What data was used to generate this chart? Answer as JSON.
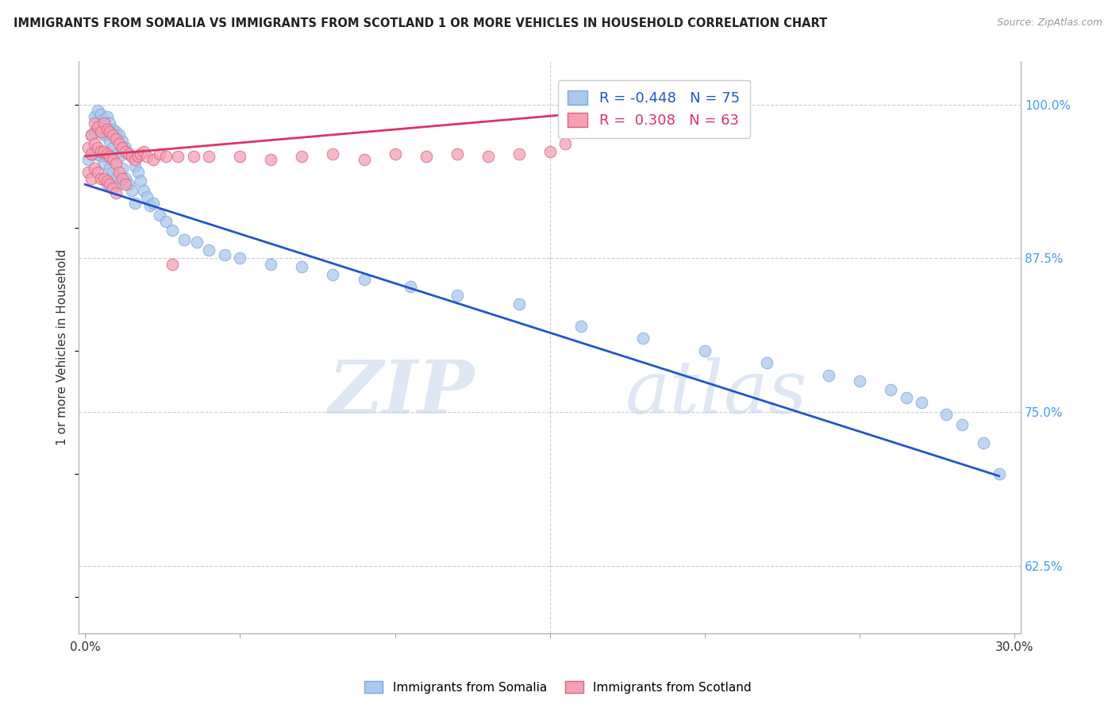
{
  "title": "IMMIGRANTS FROM SOMALIA VS IMMIGRANTS FROM SCOTLAND 1 OR MORE VEHICLES IN HOUSEHOLD CORRELATION CHART",
  "source": "Source: ZipAtlas.com",
  "ylabel": "1 or more Vehicles in Household",
  "ytick_labels": [
    "100.0%",
    "87.5%",
    "75.0%",
    "62.5%"
  ],
  "ytick_values": [
    1.0,
    0.875,
    0.75,
    0.625
  ],
  "xlim": [
    0.0,
    0.3
  ],
  "ylim": [
    0.57,
    1.035
  ],
  "somalia_color": "#aac8ee",
  "somalia_edge": "#7aaad8",
  "scotland_color": "#f4a0b5",
  "scotland_edge": "#e06080",
  "somalia_R": -0.448,
  "somalia_N": 75,
  "scotland_R": 0.308,
  "scotland_N": 63,
  "somalia_line_color": "#2255cc",
  "scotland_line_color": "#dd3366",
  "somalia_line_x0": 0.0,
  "somalia_line_y0": 0.935,
  "somalia_line_x1": 0.295,
  "somalia_line_y1": 0.698,
  "scotland_line_x0": 0.0,
  "scotland_line_y0": 0.958,
  "scotland_line_x1": 0.17,
  "scotland_line_y1": 0.995,
  "somalia_x": [
    0.001,
    0.002,
    0.002,
    0.003,
    0.003,
    0.003,
    0.004,
    0.004,
    0.004,
    0.005,
    0.005,
    0.005,
    0.006,
    0.006,
    0.006,
    0.007,
    0.007,
    0.007,
    0.007,
    0.008,
    0.008,
    0.008,
    0.009,
    0.009,
    0.009,
    0.01,
    0.01,
    0.01,
    0.011,
    0.011,
    0.011,
    0.012,
    0.012,
    0.013,
    0.013,
    0.014,
    0.014,
    0.015,
    0.015,
    0.016,
    0.016,
    0.017,
    0.018,
    0.019,
    0.02,
    0.021,
    0.022,
    0.024,
    0.026,
    0.028,
    0.032,
    0.036,
    0.04,
    0.045,
    0.05,
    0.06,
    0.07,
    0.08,
    0.09,
    0.105,
    0.12,
    0.14,
    0.16,
    0.18,
    0.2,
    0.22,
    0.24,
    0.25,
    0.26,
    0.265,
    0.27,
    0.278,
    0.283,
    0.29,
    0.295
  ],
  "somalia_y": [
    0.955,
    0.975,
    0.96,
    0.99,
    0.978,
    0.96,
    0.995,
    0.98,
    0.96,
    0.992,
    0.978,
    0.958,
    0.988,
    0.975,
    0.952,
    0.99,
    0.975,
    0.958,
    0.935,
    0.985,
    0.97,
    0.948,
    0.98,
    0.965,
    0.945,
    0.978,
    0.96,
    0.94,
    0.975,
    0.958,
    0.935,
    0.97,
    0.948,
    0.965,
    0.94,
    0.96,
    0.935,
    0.958,
    0.93,
    0.95,
    0.92,
    0.945,
    0.938,
    0.93,
    0.925,
    0.918,
    0.92,
    0.91,
    0.905,
    0.898,
    0.89,
    0.888,
    0.882,
    0.878,
    0.875,
    0.87,
    0.868,
    0.862,
    0.858,
    0.852,
    0.845,
    0.838,
    0.82,
    0.81,
    0.8,
    0.79,
    0.78,
    0.775,
    0.768,
    0.762,
    0.758,
    0.748,
    0.74,
    0.725,
    0.7
  ],
  "scotland_x": [
    0.001,
    0.001,
    0.002,
    0.002,
    0.002,
    0.003,
    0.003,
    0.003,
    0.004,
    0.004,
    0.004,
    0.005,
    0.005,
    0.005,
    0.006,
    0.006,
    0.006,
    0.007,
    0.007,
    0.007,
    0.008,
    0.008,
    0.008,
    0.009,
    0.009,
    0.009,
    0.01,
    0.01,
    0.01,
    0.011,
    0.011,
    0.012,
    0.012,
    0.013,
    0.013,
    0.014,
    0.015,
    0.016,
    0.017,
    0.018,
    0.019,
    0.02,
    0.022,
    0.024,
    0.026,
    0.028,
    0.03,
    0.035,
    0.04,
    0.05,
    0.06,
    0.07,
    0.08,
    0.09,
    0.1,
    0.11,
    0.12,
    0.13,
    0.14,
    0.15,
    0.155,
    0.162,
    0.17
  ],
  "scotland_y": [
    0.965,
    0.945,
    0.975,
    0.96,
    0.94,
    0.985,
    0.968,
    0.948,
    0.982,
    0.965,
    0.945,
    0.978,
    0.962,
    0.94,
    0.985,
    0.962,
    0.94,
    0.98,
    0.96,
    0.938,
    0.978,
    0.958,
    0.935,
    0.975,
    0.955,
    0.932,
    0.972,
    0.952,
    0.928,
    0.968,
    0.945,
    0.965,
    0.94,
    0.962,
    0.935,
    0.96,
    0.958,
    0.955,
    0.958,
    0.96,
    0.962,
    0.958,
    0.955,
    0.96,
    0.958,
    0.87,
    0.958,
    0.958,
    0.958,
    0.958,
    0.955,
    0.958,
    0.96,
    0.955,
    0.96,
    0.958,
    0.96,
    0.958,
    0.96,
    0.962,
    0.968,
    0.978,
    0.99
  ],
  "watermark_zip": "ZIP",
  "watermark_atlas": "atlas",
  "background_color": "#ffffff",
  "grid_color": "#cccccc"
}
